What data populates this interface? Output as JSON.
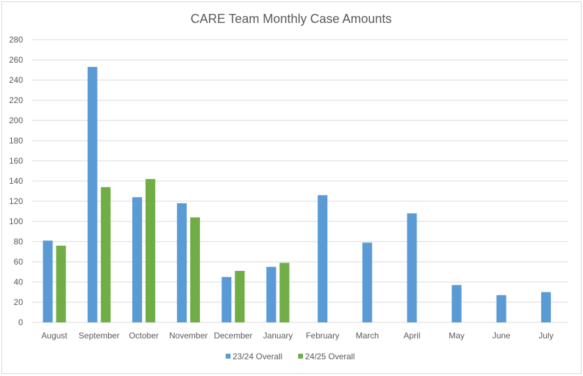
{
  "chart_data": {
    "type": "bar",
    "title": "CARE Team Monthly Case Amounts",
    "xlabel": "",
    "ylabel": "",
    "ylim": [
      0,
      280
    ],
    "yticks": [
      0,
      20,
      40,
      60,
      80,
      100,
      120,
      140,
      160,
      180,
      200,
      220,
      240,
      260,
      280
    ],
    "grid": true,
    "legend_position": "bottom",
    "categories": [
      "August",
      "September",
      "October",
      "November",
      "December",
      "January",
      "February",
      "March",
      "April",
      "May",
      "June",
      "July"
    ],
    "series": [
      {
        "name": "23/24 Overall",
        "color": "#5b9bd5",
        "values": [
          81,
          253,
          124,
          118,
          45,
          55,
          126,
          79,
          108,
          37,
          27,
          30
        ]
      },
      {
        "name": "24/25 Overall",
        "color": "#70ad47",
        "values": [
          76,
          134,
          142,
          104,
          51,
          59,
          null,
          null,
          null,
          null,
          null,
          null
        ]
      }
    ]
  }
}
